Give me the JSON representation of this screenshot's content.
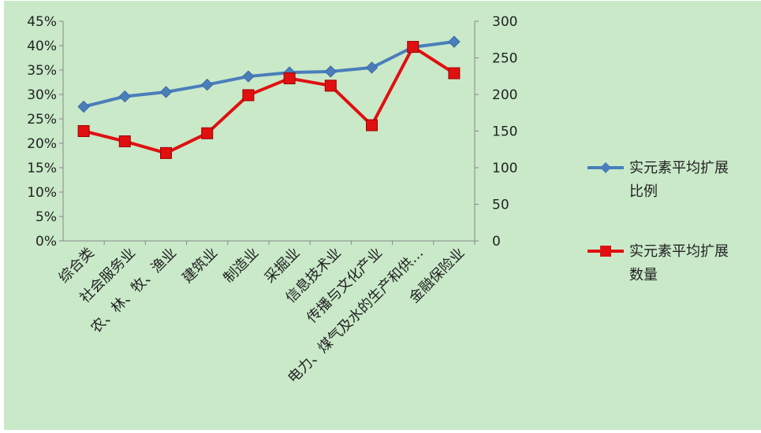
{
  "chart_data": {
    "type": "line",
    "categories": [
      "综合类",
      "社会服务业",
      "农、林、牧、渔业",
      "建筑业",
      "制造业",
      "采掘业",
      "信息技术业",
      "传播与文化产业",
      "电力、煤气及水的生产和供…",
      "金融保险业"
    ],
    "series": [
      {
        "name": "实元素平均扩展比例",
        "axis": "left",
        "marker": "diamond",
        "color": "#4a7ebb",
        "values": [
          0.275,
          0.296,
          0.305,
          0.32,
          0.337,
          0.345,
          0.347,
          0.355,
          0.397,
          0.408
        ]
      },
      {
        "name": "实元素平均扩展数量",
        "axis": "right",
        "marker": "square",
        "color": "#e01010",
        "values": [
          150,
          136,
          120,
          147,
          199,
          222,
          212,
          158,
          265,
          229
        ]
      }
    ],
    "left_axis": {
      "min": 0,
      "max": 0.45,
      "step": 0.05,
      "format": "percent",
      "ticks": [
        "0%",
        "5%",
        "10%",
        "15%",
        "20%",
        "25%",
        "30%",
        "35%",
        "40%",
        "45%"
      ]
    },
    "right_axis": {
      "min": 0,
      "max": 300,
      "step": 50,
      "ticks": [
        "0",
        "50",
        "100",
        "150",
        "200",
        "250",
        "300"
      ]
    },
    "grid": false,
    "legend_position": "right",
    "background_color": "#c9e9c9",
    "title": ""
  }
}
